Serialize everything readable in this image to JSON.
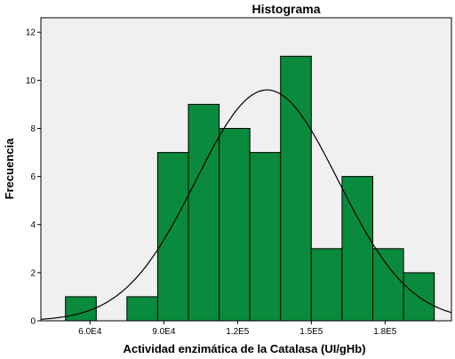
{
  "chart_data": {
    "type": "bar",
    "title": "Histograma",
    "xlabel": "Actividad enzimática de la Catalasa (UI/gHb)",
    "ylabel": "Frecuencia",
    "bin_width": 12500,
    "bin_edges": [
      50000,
      62500,
      75000,
      87500,
      100000,
      112500,
      125000,
      137500,
      150000,
      162500,
      175000,
      187500,
      200000
    ],
    "values": [
      1,
      0,
      1,
      7,
      9,
      8,
      7,
      11,
      3,
      6,
      3,
      2
    ],
    "x_ticks": [
      {
        "value": 60000,
        "label": "6.0E4"
      },
      {
        "value": 90000,
        "label": "9.0E4"
      },
      {
        "value": 120000,
        "label": "1.2E5"
      },
      {
        "value": 150000,
        "label": "1.5E5"
      },
      {
        "value": 180000,
        "label": "1.8E5"
      }
    ],
    "y_ticks": [
      0,
      2,
      4,
      6,
      8,
      10,
      12
    ],
    "xlim": [
      40000,
      207000
    ],
    "ylim": [
      0,
      12.6
    ],
    "normal_curve": {
      "mean": 132000,
      "std": 29000,
      "peak": 9.6
    },
    "colors": {
      "bar_fill": "#0a8a3c",
      "bar_stroke": "#000000",
      "plot_bg": "#f0f0f0",
      "curve": "#000000"
    }
  }
}
